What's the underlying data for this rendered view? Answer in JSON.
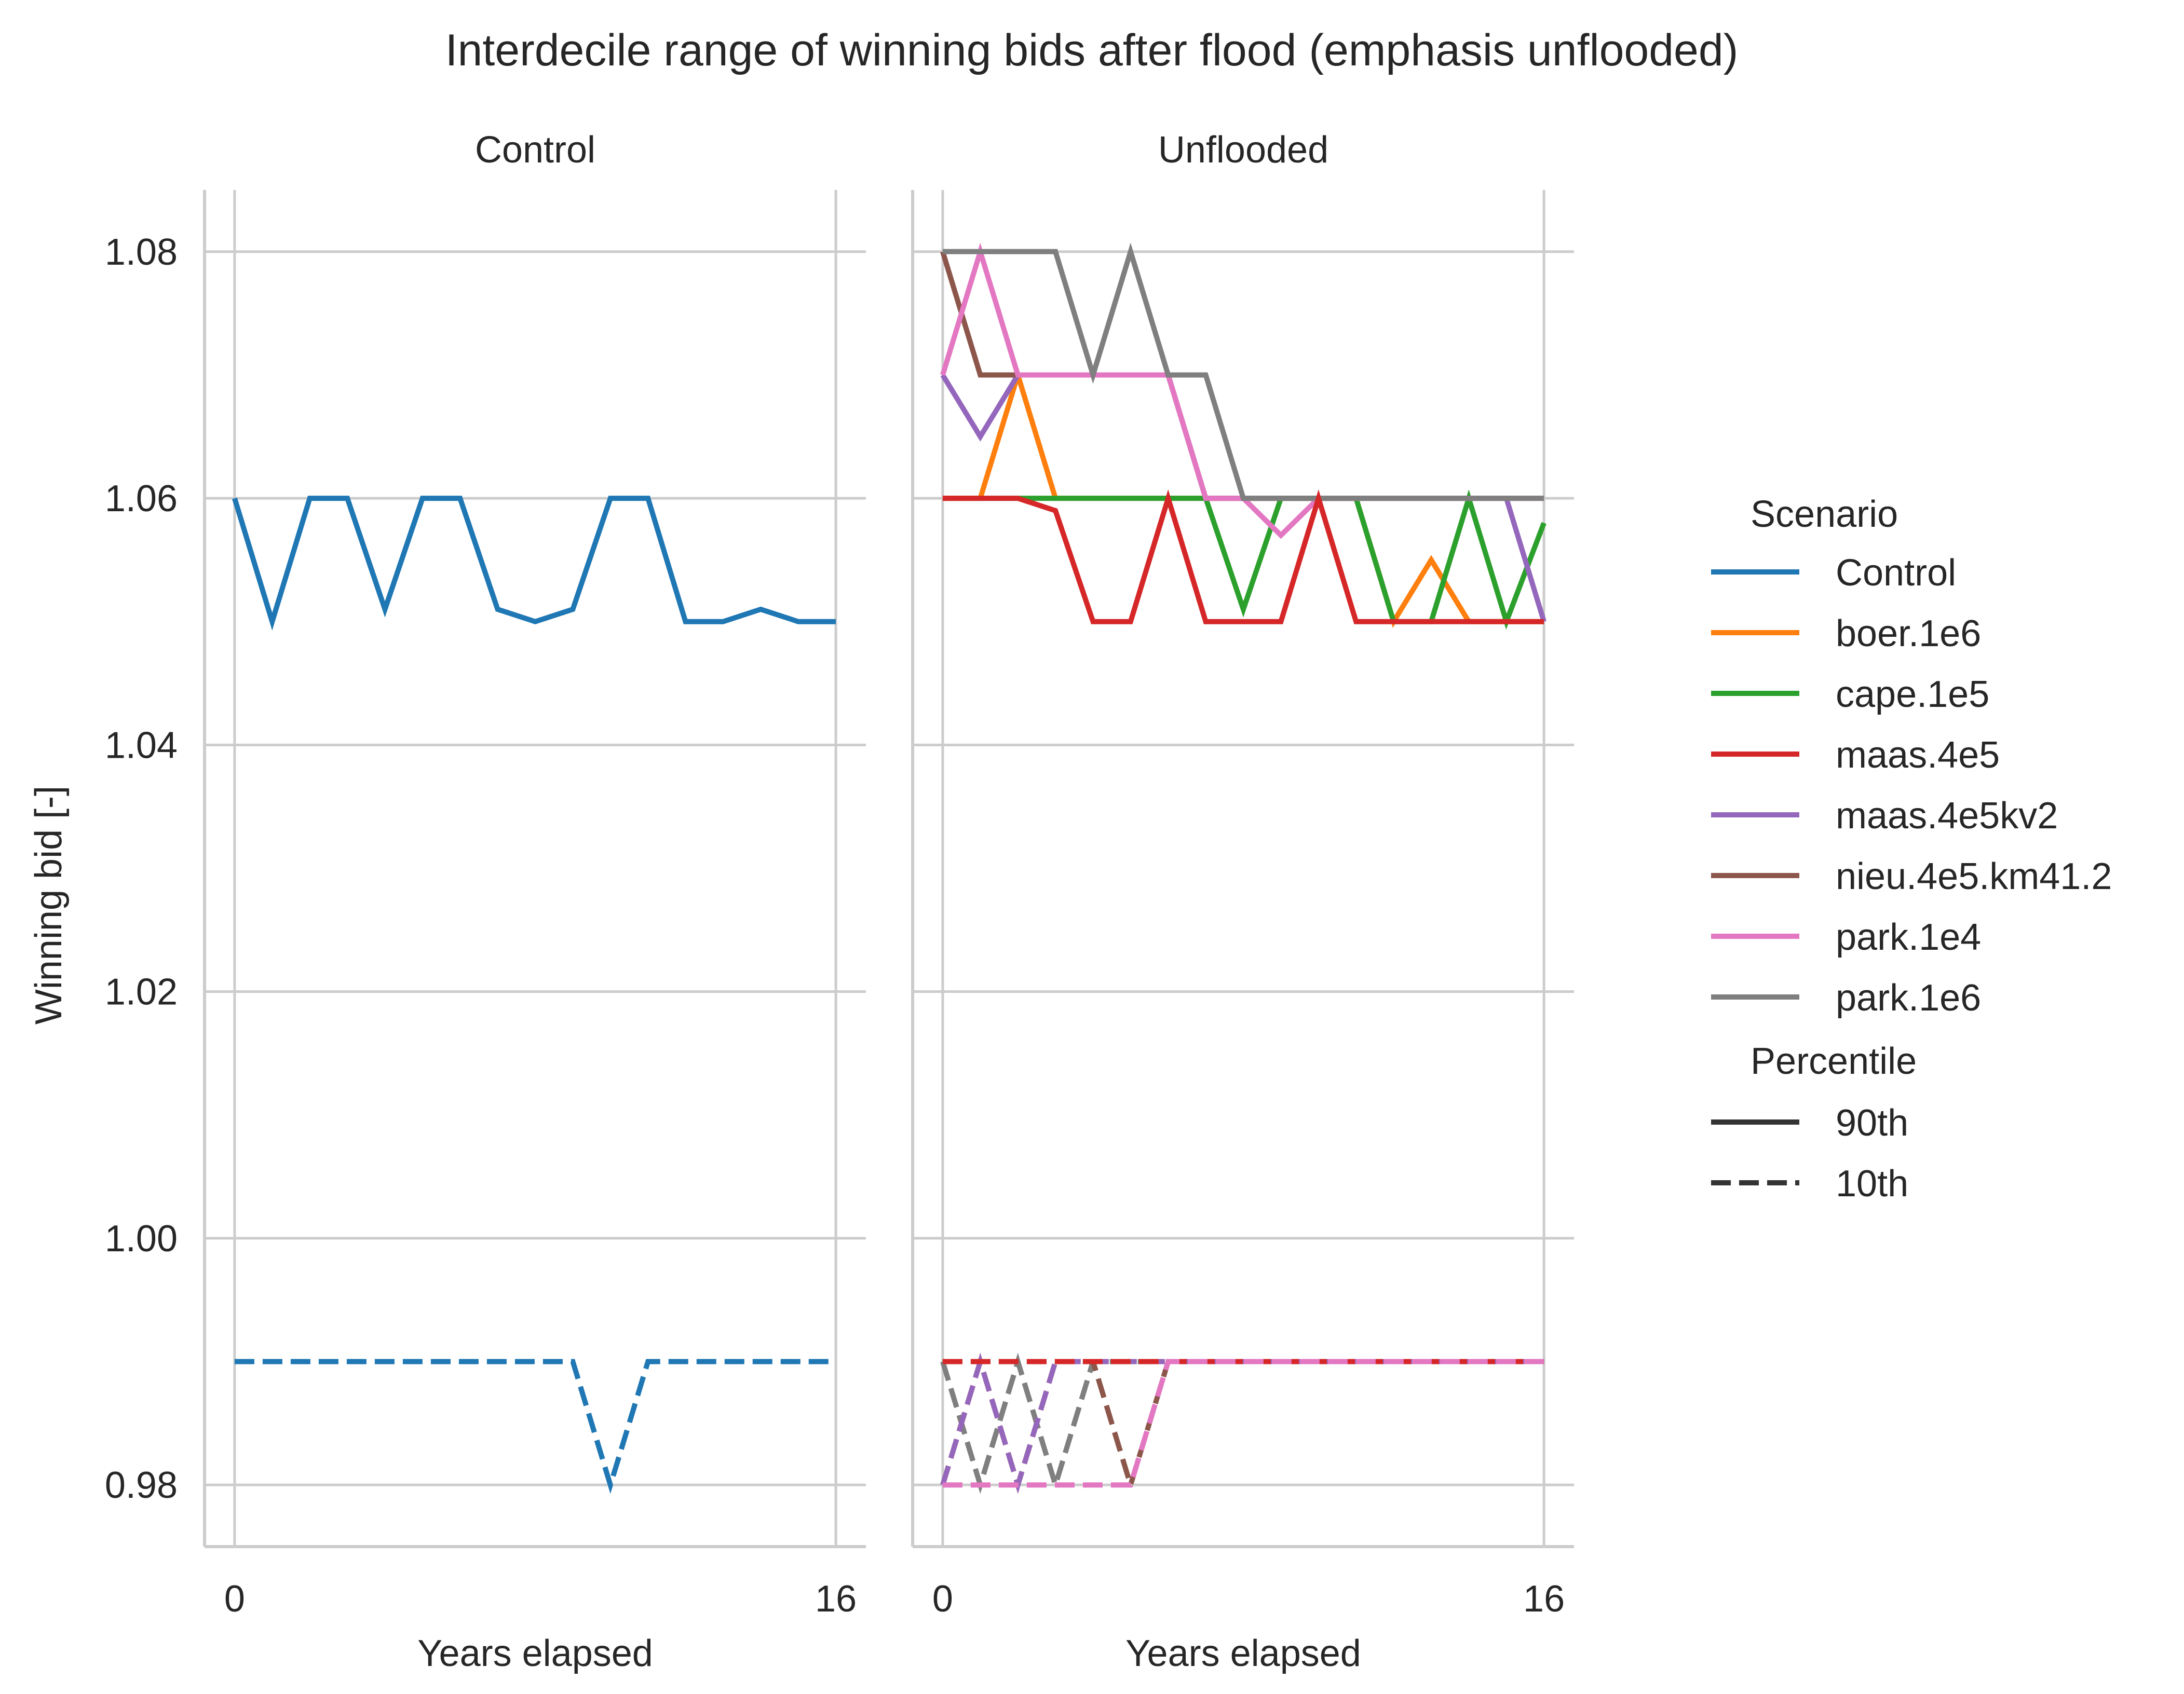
{
  "chart_data": {
    "type": "line",
    "title": "Interdecile range of winning bids after flood (emphasis unflooded)",
    "ylabel": "Winning bid [-]",
    "xlabel": "Years elapsed",
    "ylim": [
      0.975,
      1.085
    ],
    "yticks": [
      0.98,
      1.0,
      1.02,
      1.04,
      1.06,
      1.08
    ],
    "ytick_labels": [
      "0.98",
      "1.00",
      "1.02",
      "1.04",
      "1.06",
      "1.08"
    ],
    "xlim": [
      -0.8,
      16.8
    ],
    "xticks": [
      0,
      16
    ],
    "xtick_labels": [
      "0",
      "16"
    ],
    "grid": true,
    "legend_placement": "right",
    "legend": {
      "hue_title": "Scenario",
      "style_title": "Percentile",
      "styles": [
        {
          "label": "90th",
          "dash": "solid"
        },
        {
          "label": "10th",
          "dash": "dashed"
        }
      ]
    },
    "scenarios": [
      {
        "name": "Control",
        "color": "#1f77b4"
      },
      {
        "name": "boer.1e6",
        "color": "#ff7f0e"
      },
      {
        "name": "cape.1e5",
        "color": "#2ca02c"
      },
      {
        "name": "maas.4e5",
        "color": "#d62728"
      },
      {
        "name": "maas.4e5kv2",
        "color": "#9467bd"
      },
      {
        "name": "nieu.4e5.km41.2",
        "color": "#8c564b"
      },
      {
        "name": "park.1e4",
        "color": "#e377c2"
      },
      {
        "name": "park.1e6",
        "color": "#7f7f7f"
      }
    ],
    "panels": [
      {
        "title": "Control",
        "series": [
          {
            "name": "Control",
            "percentile": "90th",
            "x": [
              0,
              1,
              2,
              3,
              4,
              5,
              6,
              7,
              8,
              9,
              10,
              11,
              12,
              13,
              14,
              15,
              16
            ],
            "y": [
              1.06,
              1.05,
              1.06,
              1.06,
              1.051,
              1.06,
              1.06,
              1.051,
              1.05,
              1.051,
              1.06,
              1.06,
              1.05,
              1.05,
              1.051,
              1.05,
              1.05
            ]
          },
          {
            "name": "Control",
            "percentile": "10th",
            "x": [
              0,
              1,
              2,
              3,
              4,
              5,
              6,
              7,
              8,
              9,
              10,
              11,
              12,
              13,
              14,
              15,
              16
            ],
            "y": [
              0.99,
              0.99,
              0.99,
              0.99,
              0.99,
              0.99,
              0.99,
              0.99,
              0.99,
              0.99,
              0.98,
              0.99,
              0.99,
              0.99,
              0.99,
              0.99,
              0.99
            ]
          }
        ]
      },
      {
        "title": "Unflooded",
        "series": [
          {
            "name": "boer.1e6",
            "percentile": "90th",
            "x": [
              0,
              1,
              2,
              3,
              4,
              5,
              6,
              7,
              8,
              9,
              10,
              11,
              12,
              13,
              14,
              15,
              16
            ],
            "y": [
              1.06,
              1.06,
              1.07,
              1.06,
              1.06,
              1.06,
              1.06,
              1.06,
              1.06,
              1.06,
              1.06,
              1.06,
              1.05,
              1.055,
              1.05,
              1.05,
              1.05
            ]
          },
          {
            "name": "cape.1e5",
            "percentile": "90th",
            "x": [
              0,
              1,
              2,
              3,
              4,
              5,
              6,
              7,
              8,
              9,
              10,
              11,
              12,
              13,
              14,
              15,
              16
            ],
            "y": [
              1.06,
              1.06,
              1.06,
              1.06,
              1.06,
              1.06,
              1.06,
              1.06,
              1.051,
              1.06,
              1.06,
              1.06,
              1.05,
              1.05,
              1.06,
              1.05,
              1.058
            ]
          },
          {
            "name": "maas.4e5kv2",
            "percentile": "90th",
            "x": [
              0,
              1,
              2,
              3,
              4,
              5,
              6,
              7,
              8,
              9,
              10,
              11,
              12,
              13,
              14,
              15,
              16
            ],
            "y": [
              1.07,
              1.065,
              1.07,
              1.07,
              1.07,
              1.07,
              1.07,
              1.06,
              1.06,
              1.06,
              1.06,
              1.06,
              1.06,
              1.06,
              1.06,
              1.06,
              1.05
            ]
          },
          {
            "name": "nieu.4e5.km41.2",
            "percentile": "90th",
            "x": [
              0,
              1,
              2,
              3,
              4,
              5,
              6,
              7,
              8,
              9,
              10,
              11,
              12,
              13,
              14,
              15,
              16
            ],
            "y": [
              1.08,
              1.07,
              1.07,
              1.07,
              1.07,
              1.07,
              1.07,
              1.06,
              1.06,
              1.06,
              1.06,
              1.06,
              1.06,
              1.06,
              1.06,
              1.06,
              1.06
            ]
          },
          {
            "name": "park.1e4",
            "percentile": "90th",
            "x": [
              0,
              1,
              2,
              3,
              4,
              5,
              6,
              7,
              8,
              9,
              10,
              11,
              12,
              13,
              14,
              15,
              16
            ],
            "y": [
              1.07,
              1.08,
              1.07,
              1.07,
              1.07,
              1.07,
              1.07,
              1.06,
              1.06,
              1.057,
              1.06,
              1.06,
              1.06,
              1.06,
              1.06,
              1.06,
              1.06
            ]
          },
          {
            "name": "park.1e6",
            "percentile": "90th",
            "x": [
              0,
              1,
              2,
              3,
              4,
              5,
              6,
              7,
              8,
              9,
              10,
              11,
              12,
              13,
              14,
              15,
              16
            ],
            "y": [
              1.08,
              1.08,
              1.08,
              1.08,
              1.07,
              1.08,
              1.07,
              1.07,
              1.06,
              1.06,
              1.06,
              1.06,
              1.06,
              1.06,
              1.06,
              1.06,
              1.06
            ]
          },
          {
            "name": "maas.4e5",
            "percentile": "90th",
            "x": [
              0,
              1,
              2,
              3,
              4,
              5,
              6,
              7,
              8,
              9,
              10,
              11,
              12,
              13,
              14,
              15,
              16
            ],
            "y": [
              1.06,
              1.06,
              1.06,
              1.059,
              1.05,
              1.05,
              1.06,
              1.05,
              1.05,
              1.05,
              1.06,
              1.05,
              1.05,
              1.05,
              1.05,
              1.05,
              1.05
            ]
          },
          {
            "name": "park.1e6",
            "percentile": "10th",
            "x": [
              0,
              1,
              2,
              3,
              4,
              5,
              6,
              7,
              8,
              9,
              10,
              11,
              12,
              13,
              14,
              15,
              16
            ],
            "y": [
              0.99,
              0.98,
              0.99,
              0.98,
              0.99,
              0.99,
              0.99,
              0.99,
              0.99,
              0.99,
              0.99,
              0.99,
              0.99,
              0.99,
              0.99,
              0.99,
              0.99
            ]
          },
          {
            "name": "nieu.4e5.km41.2",
            "percentile": "10th",
            "x": [
              0,
              1,
              2,
              3,
              4,
              5,
              6,
              7,
              8,
              9,
              10,
              11,
              12,
              13,
              14,
              15,
              16
            ],
            "y": [
              0.99,
              0.99,
              0.99,
              0.99,
              0.99,
              0.98,
              0.99,
              0.99,
              0.99,
              0.99,
              0.99,
              0.99,
              0.99,
              0.99,
              0.99,
              0.99,
              0.99
            ]
          },
          {
            "name": "boer.1e6",
            "percentile": "10th",
            "x": [
              0,
              1,
              2,
              3,
              4,
              5,
              6,
              7,
              8,
              9,
              10,
              11,
              12,
              13,
              14,
              15,
              16
            ],
            "y": [
              0.98,
              0.99,
              0.98,
              0.99,
              0.99,
              0.99,
              0.99,
              0.99,
              0.99,
              0.99,
              0.99,
              0.99,
              0.99,
              0.99,
              0.99,
              0.99,
              0.99
            ]
          },
          {
            "name": "cape.1e5",
            "percentile": "10th",
            "x": [
              0,
              1,
              2,
              3,
              4,
              5,
              6,
              7,
              8,
              9,
              10,
              11,
              12,
              13,
              14,
              15,
              16
            ],
            "y": [
              0.99,
              0.99,
              0.99,
              0.99,
              0.99,
              0.99,
              0.99,
              0.99,
              0.99,
              0.99,
              0.99,
              0.99,
              0.99,
              0.99,
              0.99,
              0.99,
              0.99
            ]
          },
          {
            "name": "maas.4e5kv2",
            "percentile": "10th",
            "x": [
              0,
              1,
              2,
              3,
              4,
              5,
              6,
              7,
              8,
              9,
              10,
              11,
              12,
              13,
              14,
              15,
              16
            ],
            "y": [
              0.98,
              0.99,
              0.98,
              0.99,
              0.99,
              0.99,
              0.99,
              0.99,
              0.99,
              0.99,
              0.99,
              0.99,
              0.99,
              0.99,
              0.99,
              0.99,
              0.99
            ]
          },
          {
            "name": "maas.4e5",
            "percentile": "10th",
            "x": [
              0,
              1,
              2,
              3,
              4,
              5,
              6,
              7,
              8,
              9,
              10,
              11,
              12,
              13,
              14,
              15,
              16
            ],
            "y": [
              0.99,
              0.99,
              0.99,
              0.99,
              0.99,
              0.99,
              0.99,
              0.99,
              0.99,
              0.99,
              0.99,
              0.99,
              0.99,
              0.99,
              0.99,
              0.99,
              0.99
            ]
          },
          {
            "name": "park.1e4",
            "percentile": "10th",
            "x": [
              0,
              1,
              2,
              3,
              4,
              5,
              6,
              7,
              8,
              9,
              10,
              11,
              12,
              13,
              14,
              15,
              16
            ],
            "y": [
              0.98,
              0.98,
              0.98,
              0.98,
              0.98,
              0.98,
              0.99,
              0.99,
              0.99,
              0.99,
              0.99,
              0.99,
              0.99,
              0.99,
              0.99,
              0.99,
              0.99
            ]
          }
        ]
      }
    ]
  }
}
